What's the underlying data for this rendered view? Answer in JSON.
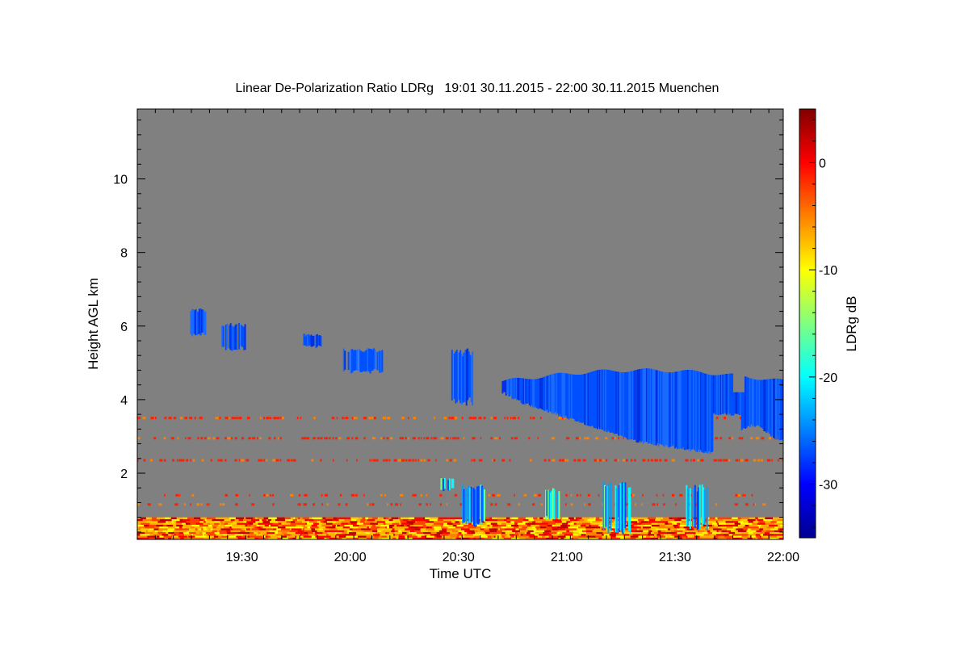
{
  "chart_data": {
    "type": "heatmap",
    "title": "Linear De-Polarization Ratio LDRg   19:01 30.11.2015 - 22:00 30.11.2015 Muenchen",
    "xlabel": "Time UTC",
    "ylabel": "Height AGL km",
    "colorbar_label": "LDRg dB",
    "xlim": [
      "19:01",
      "22:00"
    ],
    "ylim": [
      0.2,
      11.9
    ],
    "clim": [
      -35,
      5
    ],
    "x_ticks": [
      {
        "label": "19:30",
        "minute": 29
      },
      {
        "label": "20:00",
        "minute": 59
      },
      {
        "label": "20:30",
        "minute": 89
      },
      {
        "label": "21:00",
        "minute": 119
      },
      {
        "label": "21:30",
        "minute": 149
      },
      {
        "label": "22:00",
        "minute": 179
      }
    ],
    "y_ticks": [
      2,
      4,
      6,
      8,
      10
    ],
    "colorbar_ticks": [
      0,
      -10,
      -20,
      -30
    ],
    "background_value_color": "#808080",
    "colormap": [
      "#00008f",
      "#0000ff",
      "#0080ff",
      "#00ffff",
      "#80ff80",
      "#ffff00",
      "#ff8000",
      "#ff0000",
      "#800000"
    ],
    "features": {
      "upper_cloud_fragments": [
        {
          "t_start": 14,
          "t_end": 19,
          "h_bottom": 5.7,
          "h_top": 6.5,
          "ldr_db": -31
        },
        {
          "t_start": 23,
          "t_end": 30,
          "h_bottom": 5.3,
          "h_top": 6.1,
          "ldr_db": -30
        },
        {
          "t_start": 46,
          "t_end": 51,
          "h_bottom": 5.4,
          "h_top": 5.8,
          "ldr_db": -30
        },
        {
          "t_start": 57,
          "t_end": 68,
          "h_bottom": 4.7,
          "h_top": 5.4,
          "ldr_db": -30
        },
        {
          "t_start": 87,
          "t_end": 93,
          "h_bottom": 3.8,
          "h_top": 5.4,
          "ldr_db": -31
        }
      ],
      "mid_cloud": {
        "t_start": 101,
        "t_end": 179,
        "h_bottom": 2.5,
        "h_top": 4.9,
        "ldr_db": -30
      },
      "aerosol_lines_km": [
        3.5,
        2.95,
        2.35,
        1.4,
        1.15
      ],
      "low_cloud_patches": [
        {
          "t_start": 84,
          "t_end": 88,
          "h_bottom": 1.5,
          "h_top": 1.9
        },
        {
          "t_start": 90,
          "t_end": 97,
          "h_bottom": 0.5,
          "h_top": 1.7
        },
        {
          "t_start": 112,
          "t_end": 117,
          "h_bottom": 0.7,
          "h_top": 1.6
        },
        {
          "t_start": 129,
          "t_end": 137,
          "h_bottom": 0.3,
          "h_top": 1.8
        },
        {
          "t_start": 152,
          "t_end": 158,
          "h_bottom": 0.4,
          "h_top": 1.7
        }
      ],
      "boundary_layer": {
        "h_bottom": 0.2,
        "h_top": 0.8,
        "ldr_db_range": [
          -15,
          0
        ]
      }
    }
  }
}
